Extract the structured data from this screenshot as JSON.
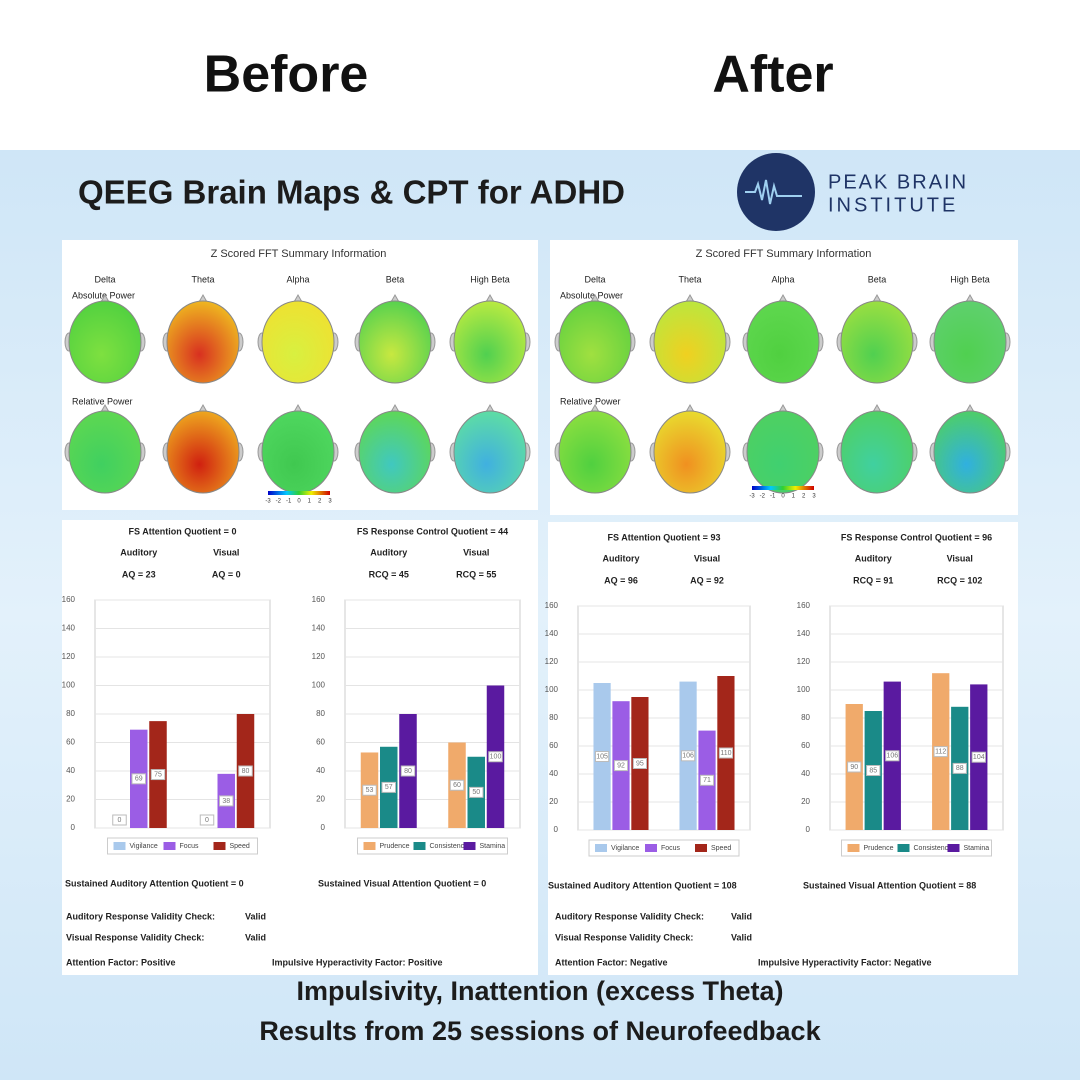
{
  "header": {
    "before": "Before",
    "after": "After"
  },
  "title": "QEEG Brain Maps & CPT for ADHD",
  "logo": {
    "line1": "PEAK BRAIN",
    "line2": "INSTITUTE"
  },
  "brain_maps": [
    {
      "title": "Z Scored FFT Summary Information",
      "bands": [
        "Delta",
        "Theta",
        "Alpha",
        "Beta",
        "High Beta"
      ],
      "rows": [
        "Absolute Power",
        "Relative Power"
      ],
      "scale": [
        -3,
        -2,
        -1,
        0,
        1,
        2,
        3
      ]
    },
    {
      "title": "Z Scored FFT Summary Information",
      "bands": [
        "Delta",
        "Theta",
        "Alpha",
        "Beta",
        "High Beta"
      ],
      "rows": [
        "Absolute Power",
        "Relative Power"
      ],
      "scale": [
        -3,
        -2,
        -1,
        0,
        1,
        2,
        3
      ]
    }
  ],
  "chart_data": [
    {
      "type": "bar",
      "title": "FS Attention Quotient = 0",
      "group_labels": [
        "Auditory",
        "Visual"
      ],
      "quotients": [
        "AQ = 23",
        "AQ = 0"
      ],
      "categories": [
        null,
        null
      ],
      "series": [
        {
          "name": "Vigilance",
          "color": "#a9c9ec",
          "values": [
            0,
            0
          ]
        },
        {
          "name": "Focus",
          "color": "#9b5de5",
          "values": [
            69,
            38
          ]
        },
        {
          "name": "Speed",
          "color": "#a3261a",
          "values": [
            75,
            80
          ]
        }
      ],
      "ylim": [
        0,
        160
      ],
      "yticks": [
        0,
        20,
        40,
        60,
        80,
        100,
        120,
        140,
        160
      ],
      "summary": "Sustained Auditory Attention Quotient = 0"
    },
    {
      "type": "bar",
      "title": "FS Response Control Quotient = 44",
      "group_labels": [
        "Auditory",
        "Visual"
      ],
      "quotients": [
        "RCQ = 45",
        "RCQ = 55"
      ],
      "categories": [
        null,
        null
      ],
      "series": [
        {
          "name": "Prudence",
          "color": "#f0aa6b",
          "values": [
            53,
            60
          ]
        },
        {
          "name": "Consistency",
          "color": "#1a8a88",
          "values": [
            57,
            50
          ]
        },
        {
          "name": "Stamina",
          "color": "#5a1aa0",
          "values": [
            80,
            100
          ]
        }
      ],
      "ylim": [
        0,
        160
      ],
      "yticks": [
        0,
        20,
        40,
        60,
        80,
        100,
        120,
        140,
        160
      ],
      "summary": "Sustained Visual Attention Quotient = 0"
    },
    {
      "type": "bar",
      "title": "FS Attention Quotient = 93",
      "group_labels": [
        "Auditory",
        "Visual"
      ],
      "quotients": [
        "AQ = 96",
        "AQ = 92"
      ],
      "categories": [
        null,
        null
      ],
      "series": [
        {
          "name": "Vigilance",
          "color": "#a9c9ec",
          "values": [
            105,
            106
          ]
        },
        {
          "name": "Focus",
          "color": "#9b5de5",
          "values": [
            92,
            71
          ]
        },
        {
          "name": "Speed",
          "color": "#a3261a",
          "values": [
            95,
            110
          ]
        }
      ],
      "ylim": [
        0,
        160
      ],
      "yticks": [
        0,
        20,
        40,
        60,
        80,
        100,
        120,
        140,
        160
      ],
      "summary": "Sustained Auditory Attention Quotient = 108"
    },
    {
      "type": "bar",
      "title": "FS Response Control Quotient = 96",
      "group_labels": [
        "Auditory",
        "Visual"
      ],
      "quotients": [
        "RCQ = 91",
        "RCQ = 102"
      ],
      "categories": [
        null,
        null
      ],
      "series": [
        {
          "name": "Prudence",
          "color": "#f0aa6b",
          "values": [
            90,
            112
          ]
        },
        {
          "name": "Consistency",
          "color": "#1a8a88",
          "values": [
            85,
            88
          ]
        },
        {
          "name": "Stamina",
          "color": "#5a1aa0",
          "values": [
            106,
            104
          ]
        }
      ],
      "ylim": [
        0,
        160
      ],
      "yticks": [
        0,
        20,
        40,
        60,
        80,
        100,
        120,
        140,
        160
      ],
      "summary": "Sustained Visual Attention Quotient = 88"
    }
  ],
  "reports": [
    {
      "auditory_check": "Auditory Response Validity Check:",
      "auditory_result": "Valid",
      "visual_check": "Visual Response Validity Check:",
      "visual_result": "Valid",
      "attention_factor": "Attention Factor:  Positive",
      "impulsive_factor": "Impulsive Hyperactivity Factor: Positive"
    },
    {
      "auditory_check": "Auditory Response Validity Check:",
      "auditory_result": "Valid",
      "visual_check": "Visual Response Validity Check:",
      "visual_result": "Valid",
      "attention_factor": "Attention Factor:  Negative",
      "impulsive_factor": "Impulsive Hyperactivity Factor: Negative"
    }
  ],
  "footer": [
    "Impulsivity, Inattention (excess Theta)",
    "Results from 25 sessions of Neurofeedback"
  ]
}
